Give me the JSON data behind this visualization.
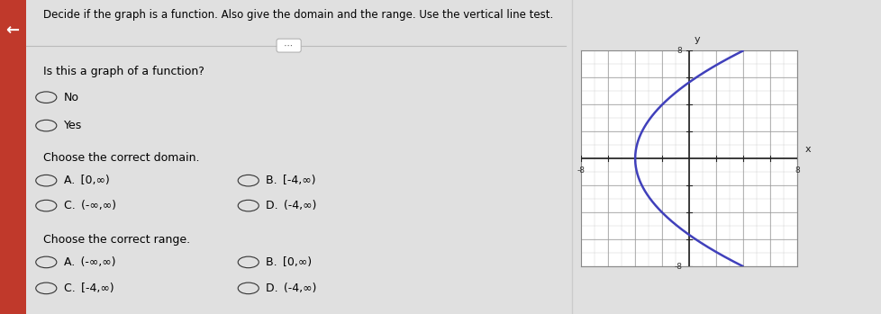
{
  "title": "Decide if the graph is a function. Also give the domain and the range. Use the vertical line test.",
  "question1": "Is this a graph of a function?",
  "q1_options": [
    "No",
    "Yes"
  ],
  "question2": "Choose the correct domain.",
  "q2_options_left": [
    "A. [0,∞)",
    "C. (-∞,∞)"
  ],
  "q2_options_right": [
    "B. [-4,∞)",
    "D. (-4,∞)"
  ],
  "question3": "Choose the correct range.",
  "q3_options_left": [
    "A. (-∞,∞)",
    "C. [-4,∞)"
  ],
  "q3_options_right": [
    "B. [0,∞)",
    "D. (-4,∞)"
  ],
  "graph_xlim": [
    -8,
    8
  ],
  "graph_ylim": [
    -8,
    8
  ],
  "curve_color": "#4040bb",
  "curve_linewidth": 1.8,
  "bg_color": "#e0e0e0",
  "left_panel_bg": "#f0f0f0",
  "graph_bg": "#ffffff",
  "grid_color": "#999999",
  "minor_grid_color": "#cccccc",
  "axis_color": "#222222",
  "text_color": "#000000",
  "label_color": "#333333"
}
